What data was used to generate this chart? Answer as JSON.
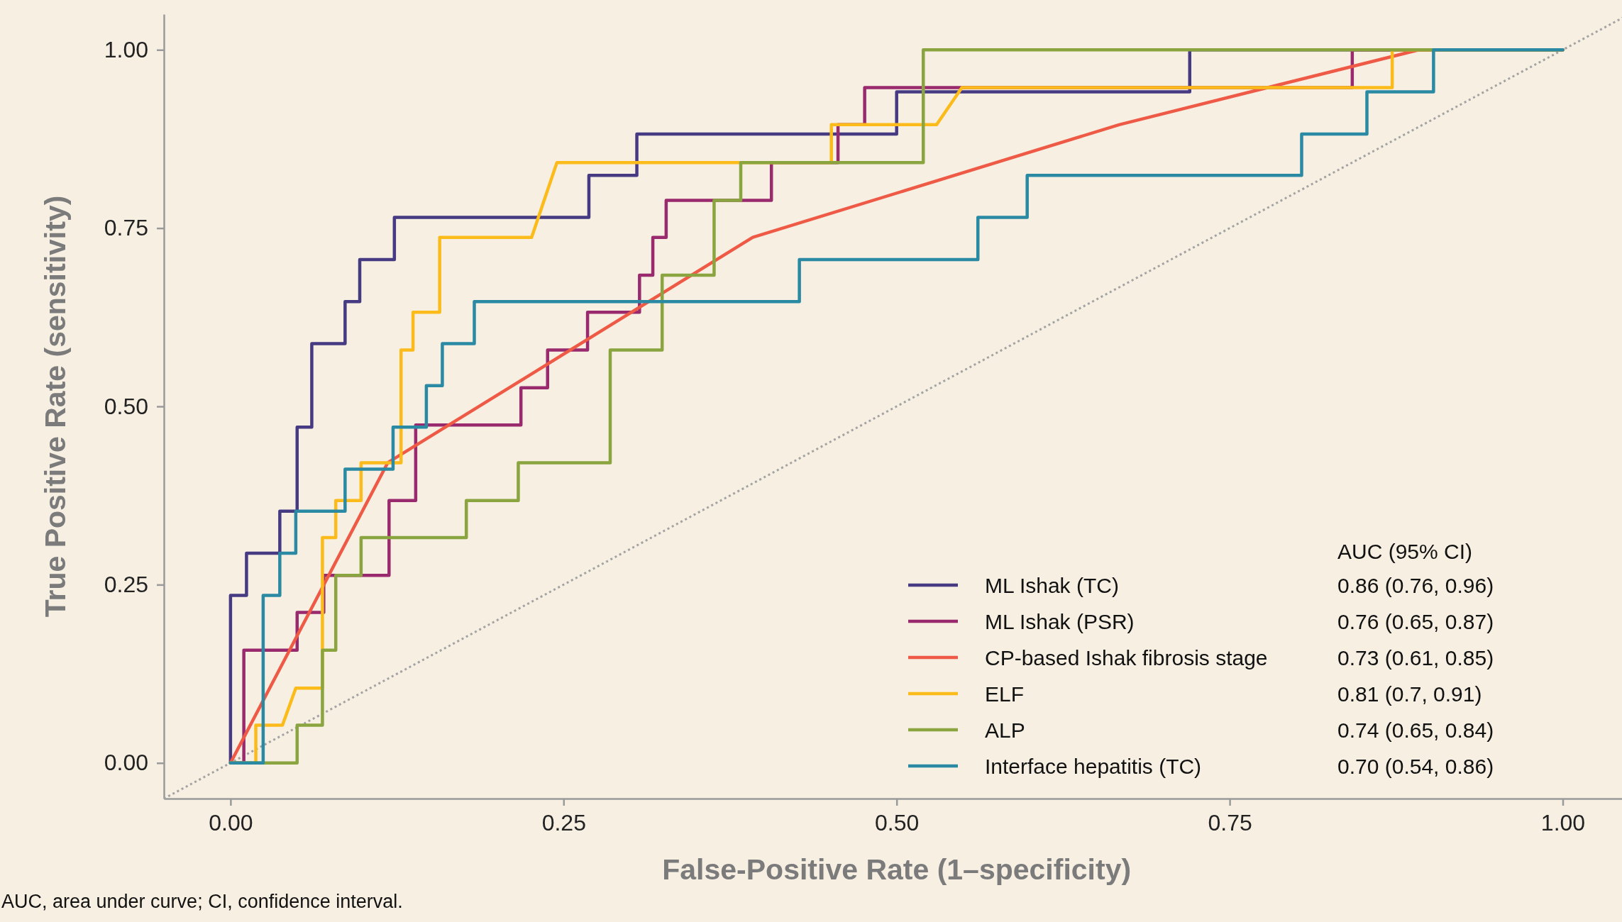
{
  "chart_data": {
    "type": "line",
    "xlabel": "False-Positive Rate (1–specificity)",
    "ylabel": "True Positive Rate (sensitivity)",
    "legend_title": "AUC (95% CI)",
    "legend": "bottom right",
    "xlim": [
      -0.05,
      1.045
    ],
    "ylim": [
      -0.05,
      1.05
    ],
    "xticks": [
      {
        "value": 0,
        "label": "0.00"
      },
      {
        "value": 0.25,
        "label": "0.25"
      },
      {
        "value": 0.5,
        "label": "0.50"
      },
      {
        "value": 0.75,
        "label": "0.75"
      },
      {
        "value": 1,
        "label": "1.00"
      }
    ],
    "yticks": [
      {
        "value": 0,
        "label": "0.00"
      },
      {
        "value": 0.25,
        "label": "0.25"
      },
      {
        "value": 0.5,
        "label": "0.50"
      },
      {
        "value": 0.75,
        "label": "0.75"
      },
      {
        "value": 1,
        "label": "1.00"
      }
    ],
    "annotations": [
      "AUC, area under curve; CI, confidence interval.",
      "0.86 (0.76, 0.96)",
      "0.76 (0.65, 0.87)",
      "0.73 (0.61, 0.85)",
      "0.81 (0.7, 0.91)",
      "0.74 (0.65, 0.84)",
      "0.70 (0.54, 0.86)"
    ],
    "series": [
      {
        "color": "#a3a3a3",
        "line_style": "dotted",
        "x": [
          -0.05,
          1.045
        ],
        "values": [
          -0.05,
          1.045
        ]
      },
      {
        "name": "ML Ishak (TC)",
        "color": "#463a83",
        "x": [
          0,
          0,
          0.012,
          0.012,
          0.037,
          0.037,
          0.05,
          0.05,
          0.061,
          0.061,
          0.086,
          0.086,
          0.097,
          0.097,
          0.123,
          0.123,
          0.269,
          0.269,
          0.305,
          0.305,
          0.5,
          0.5,
          0.72,
          0.72,
          1
        ],
        "values": [
          0,
          0.235,
          0.235,
          0.294,
          0.294,
          0.353,
          0.353,
          0.471,
          0.471,
          0.588,
          0.588,
          0.647,
          0.647,
          0.706,
          0.706,
          0.765,
          0.765,
          0.824,
          0.824,
          0.882,
          0.882,
          0.941,
          0.941,
          1,
          1
        ]
      },
      {
        "name": "ML Ishak (PSR)",
        "color": "#9a2a6e",
        "x": [
          0,
          0.01,
          0.01,
          0.05,
          0.05,
          0.07,
          0.07,
          0.119,
          0.119,
          0.139,
          0.139,
          0.218,
          0.218,
          0.238,
          0.238,
          0.268,
          0.268,
          0.307,
          0.307,
          0.317,
          0.317,
          0.327,
          0.327,
          0.406,
          0.406,
          0.456,
          0.456,
          0.476,
          0.476,
          0.842,
          0.842,
          1
        ],
        "values": [
          0,
          0,
          0.158,
          0.158,
          0.211,
          0.211,
          0.263,
          0.263,
          0.368,
          0.368,
          0.474,
          0.474,
          0.526,
          0.526,
          0.579,
          0.579,
          0.632,
          0.632,
          0.684,
          0.684,
          0.737,
          0.737,
          0.789,
          0.789,
          0.842,
          0.842,
          0.895,
          0.895,
          0.947,
          0.947,
          1,
          1
        ]
      },
      {
        "name": "CP-based Ishak fibrosis stage",
        "color": "#ee5a45",
        "x": [
          0,
          0.118,
          0.392,
          0.667,
          0.892,
          1
        ],
        "values": [
          0,
          0.421,
          0.737,
          0.895,
          1,
          1
        ]
      },
      {
        "name": "ELF",
        "color": "#fbbb1a",
        "x": [
          0,
          0.019,
          0.019,
          0.039,
          0.049,
          0.069,
          0.069,
          0.079,
          0.079,
          0.098,
          0.098,
          0.128,
          0.128,
          0.137,
          0.137,
          0.157,
          0.157,
          0.226,
          0.245,
          0.451,
          0.451,
          0.53,
          0.549,
          0.872,
          0.872,
          1
        ],
        "values": [
          0,
          0,
          0.053,
          0.053,
          0.105,
          0.105,
          0.316,
          0.316,
          0.368,
          0.368,
          0.421,
          0.421,
          0.579,
          0.579,
          0.632,
          0.632,
          0.737,
          0.737,
          0.842,
          0.842,
          0.895,
          0.895,
          0.947,
          0.947,
          1,
          1
        ]
      },
      {
        "name": "ALP",
        "color": "#8aa53f",
        "x": [
          0,
          0.05,
          0.05,
          0.069,
          0.069,
          0.079,
          0.079,
          0.098,
          0.098,
          0.177,
          0.177,
          0.216,
          0.216,
          0.285,
          0.285,
          0.324,
          0.324,
          0.363,
          0.363,
          0.383,
          0.383,
          0.52,
          0.52,
          1
        ],
        "values": [
          0,
          0,
          0.053,
          0.053,
          0.158,
          0.158,
          0.263,
          0.263,
          0.316,
          0.316,
          0.368,
          0.368,
          0.421,
          0.421,
          0.579,
          0.579,
          0.684,
          0.684,
          0.789,
          0.789,
          0.842,
          0.842,
          1,
          1
        ]
      },
      {
        "name": "Interface hepatitis (TC)",
        "color": "#2a89a3",
        "x": [
          0,
          0.0245,
          0.0245,
          0.037,
          0.037,
          0.049,
          0.049,
          0.086,
          0.086,
          0.122,
          0.122,
          0.147,
          0.147,
          0.159,
          0.159,
          0.183,
          0.183,
          0.427,
          0.427,
          0.561,
          0.561,
          0.598,
          0.598,
          0.804,
          0.804,
          0.853,
          0.853,
          0.903,
          0.903,
          1
        ],
        "values": [
          0,
          0,
          0.235,
          0.235,
          0.294,
          0.294,
          0.353,
          0.353,
          0.412,
          0.412,
          0.471,
          0.471,
          0.529,
          0.529,
          0.588,
          0.588,
          0.647,
          0.647,
          0.706,
          0.706,
          0.765,
          0.765,
          0.824,
          0.824,
          0.882,
          0.882,
          0.941,
          0.941,
          1,
          1
        ]
      }
    ]
  }
}
